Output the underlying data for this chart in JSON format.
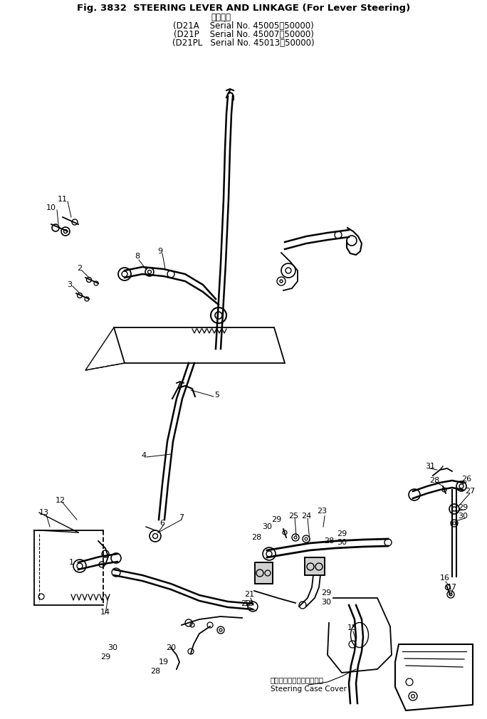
{
  "title_line1": "Fig. 3832  STEERING LEVER AND LINKAGE (For Lever Steering)",
  "title_line2": "適用号機",
  "model_lines": [
    "(D21A    Serial No. 45005～50000)",
    "(D21P    Serial No. 45007～50000)",
    "(D21PL   Serial No. 45013～50000)"
  ],
  "bg_color": "#ffffff",
  "line_color": "#000000",
  "fig_width": 6.84,
  "fig_height": 10.1,
  "steering_case_cover_ja": "ステアリングケースカバー",
  "steering_case_cover_en": "Steering Case Cover"
}
